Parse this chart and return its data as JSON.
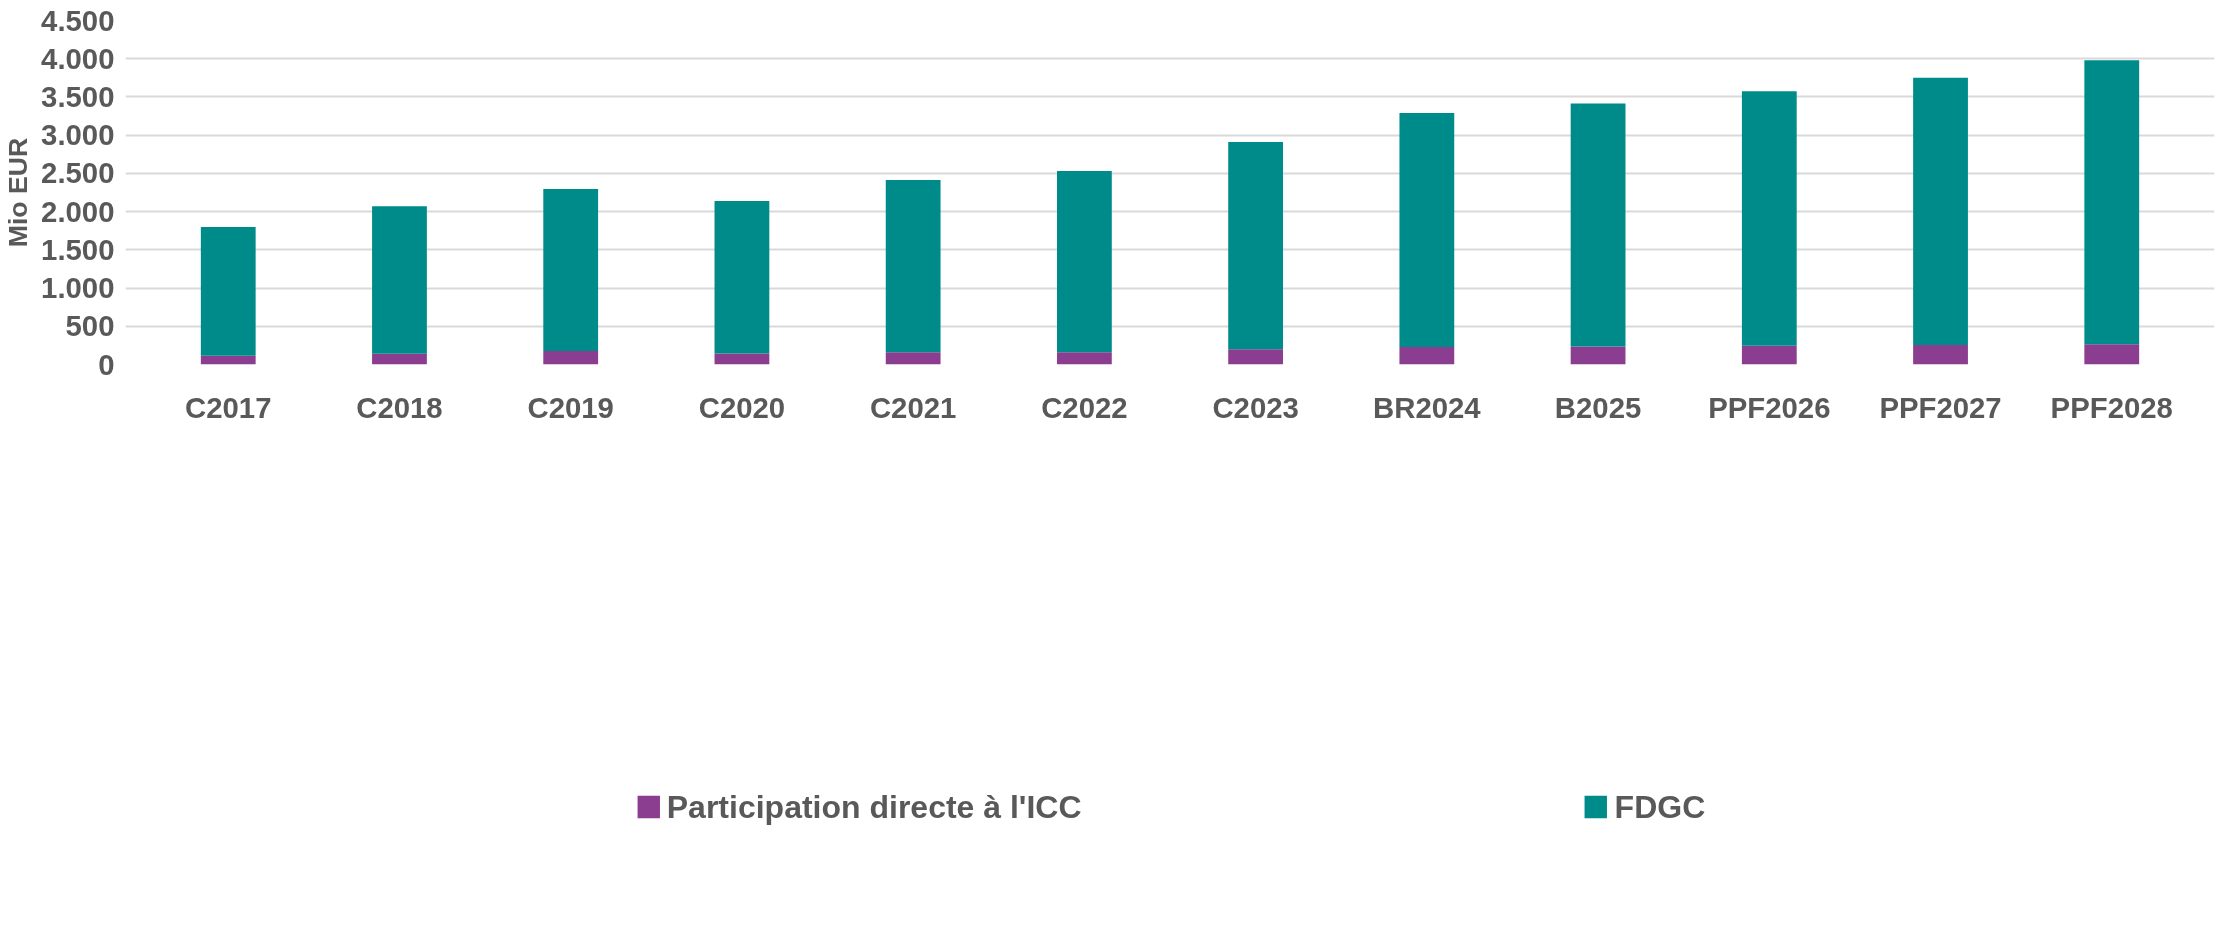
{
  "chart_data": {
    "type": "bar",
    "stacked": true,
    "ylabel": "Mio EUR",
    "categories": [
      "C2017",
      "C2018",
      "C2019",
      "C2020",
      "C2021",
      "C2022",
      "C2023",
      "BR2024",
      "B2025",
      "PPF2026",
      "PPF2027",
      "PPF2028"
    ],
    "series": [
      {
        "name": "Participation directe à l'ICC",
        "color": "#8b3d8f",
        "values": [
          115,
          140,
          175,
          145,
          160,
          160,
          200,
          230,
          235,
          245,
          255,
          265
        ]
      },
      {
        "name": "FDGC",
        "color": "#008b8b",
        "values": [
          1685,
          1930,
          2120,
          1995,
          2255,
          2370,
          2710,
          3060,
          3180,
          3330,
          3495,
          3715
        ]
      }
    ],
    "ylim": [
      0,
      4500
    ],
    "yticks": [
      {
        "value": 0,
        "label": "0"
      },
      {
        "value": 500,
        "label": "500"
      },
      {
        "value": 1000,
        "label": "1.000"
      },
      {
        "value": 1500,
        "label": "1.500"
      },
      {
        "value": 2000,
        "label": "2.000"
      },
      {
        "value": 2500,
        "label": "2.500"
      },
      {
        "value": 3000,
        "label": "3.000"
      },
      {
        "value": 3500,
        "label": "3.500"
      },
      {
        "value": 4000,
        "label": "4.000"
      },
      {
        "value": 4500,
        "label": "4.500"
      }
    ],
    "grid": "y",
    "legend": "bottom"
  }
}
